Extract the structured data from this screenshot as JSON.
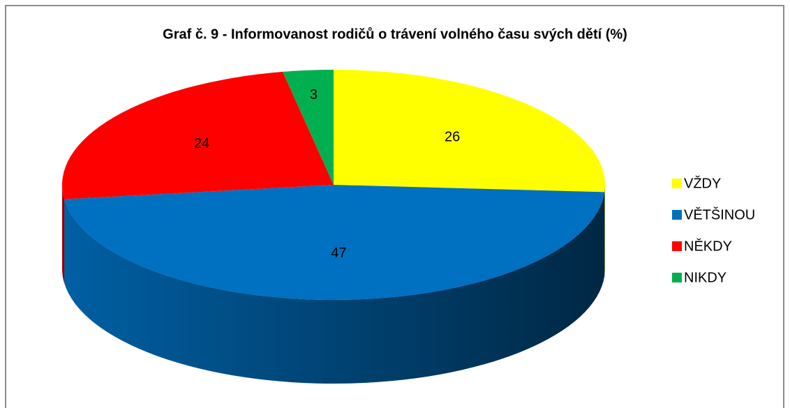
{
  "chart_data": {
    "type": "pie",
    "title": "Graf č. 9 - Informovanost rodičů o trávení volného času svých dětí (%)",
    "categories": [
      "VŽDY",
      "VĚTŠINOU",
      "NĚKDY",
      "NIKDY"
    ],
    "values": [
      26,
      47,
      24,
      3
    ],
    "colors": [
      "#ffff00",
      "#0070c0",
      "#ff0000",
      "#00b050"
    ],
    "legend": "right"
  }
}
